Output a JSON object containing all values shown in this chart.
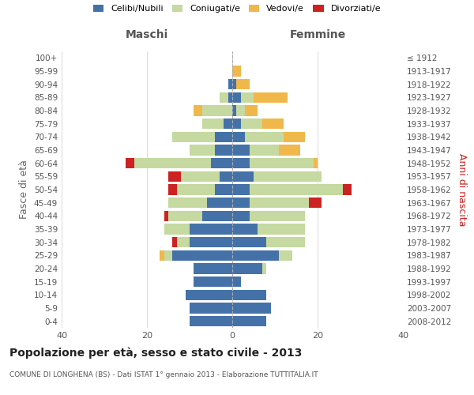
{
  "age_groups_bottom_to_top": [
    "0-4",
    "5-9",
    "10-14",
    "15-19",
    "20-24",
    "25-29",
    "30-34",
    "35-39",
    "40-44",
    "45-49",
    "50-54",
    "55-59",
    "60-64",
    "65-69",
    "70-74",
    "75-79",
    "80-84",
    "85-89",
    "90-94",
    "95-99",
    "100+"
  ],
  "birth_years_bottom_to_top": [
    "2008-2012",
    "2003-2007",
    "1998-2002",
    "1993-1997",
    "1988-1992",
    "1983-1987",
    "1978-1982",
    "1973-1977",
    "1968-1972",
    "1963-1967",
    "1958-1962",
    "1953-1957",
    "1948-1952",
    "1943-1947",
    "1938-1942",
    "1933-1937",
    "1928-1932",
    "1923-1927",
    "1918-1922",
    "1913-1917",
    "≤ 1912"
  ],
  "maschi": {
    "celibi": [
      10,
      10,
      11,
      9,
      9,
      14,
      10,
      10,
      7,
      6,
      4,
      3,
      5,
      4,
      4,
      2,
      0,
      1,
      1,
      0,
      0
    ],
    "coniugati": [
      0,
      0,
      0,
      0,
      0,
      2,
      3,
      6,
      8,
      9,
      9,
      9,
      18,
      6,
      10,
      5,
      7,
      2,
      0,
      0,
      0
    ],
    "vedovi": [
      0,
      0,
      0,
      0,
      0,
      1,
      0,
      0,
      0,
      0,
      0,
      0,
      0,
      0,
      0,
      0,
      2,
      0,
      0,
      0,
      0
    ],
    "divorziati": [
      0,
      0,
      0,
      0,
      0,
      0,
      1,
      0,
      1,
      0,
      2,
      3,
      2,
      0,
      0,
      0,
      0,
      0,
      0,
      0,
      0
    ]
  },
  "femmine": {
    "nubili": [
      8,
      9,
      8,
      2,
      7,
      11,
      8,
      6,
      4,
      4,
      4,
      5,
      4,
      4,
      3,
      2,
      1,
      2,
      1,
      0,
      0
    ],
    "coniugate": [
      0,
      0,
      0,
      0,
      1,
      3,
      9,
      11,
      13,
      14,
      22,
      16,
      15,
      7,
      9,
      5,
      2,
      3,
      0,
      0,
      0
    ],
    "vedove": [
      0,
      0,
      0,
      0,
      0,
      0,
      0,
      0,
      0,
      0,
      0,
      0,
      1,
      5,
      5,
      5,
      3,
      8,
      3,
      2,
      0
    ],
    "divorziate": [
      0,
      0,
      0,
      0,
      0,
      0,
      0,
      0,
      0,
      3,
      2,
      0,
      0,
      0,
      0,
      0,
      0,
      0,
      0,
      0,
      0
    ]
  },
  "colors": {
    "celibi": "#4472a8",
    "coniugati": "#c5d9a0",
    "vedovi": "#f0b84a",
    "divorziati": "#cc2222"
  },
  "xlim": [
    -40,
    40
  ],
  "xticks": [
    -40,
    -20,
    0,
    20,
    40
  ],
  "xticklabels": [
    "40",
    "20",
    "0",
    "20",
    "40"
  ],
  "title": "Popolazione per età, sesso e stato civile - 2013",
  "subtitle": "COMUNE DI LONGHENA (BS) - Dati ISTAT 1° gennaio 2013 - Elaborazione TUTTITALIA.IT",
  "ylabel_left": "Fasce di età",
  "ylabel_right": "Anni di nascita",
  "label_maschi": "Maschi",
  "label_femmine": "Femmine",
  "legend_labels": [
    "Celibi/Nubili",
    "Coniugati/e",
    "Vedovi/e",
    "Divorziati/e"
  ],
  "background_color": "#ffffff",
  "grid_color": "#cccccc"
}
